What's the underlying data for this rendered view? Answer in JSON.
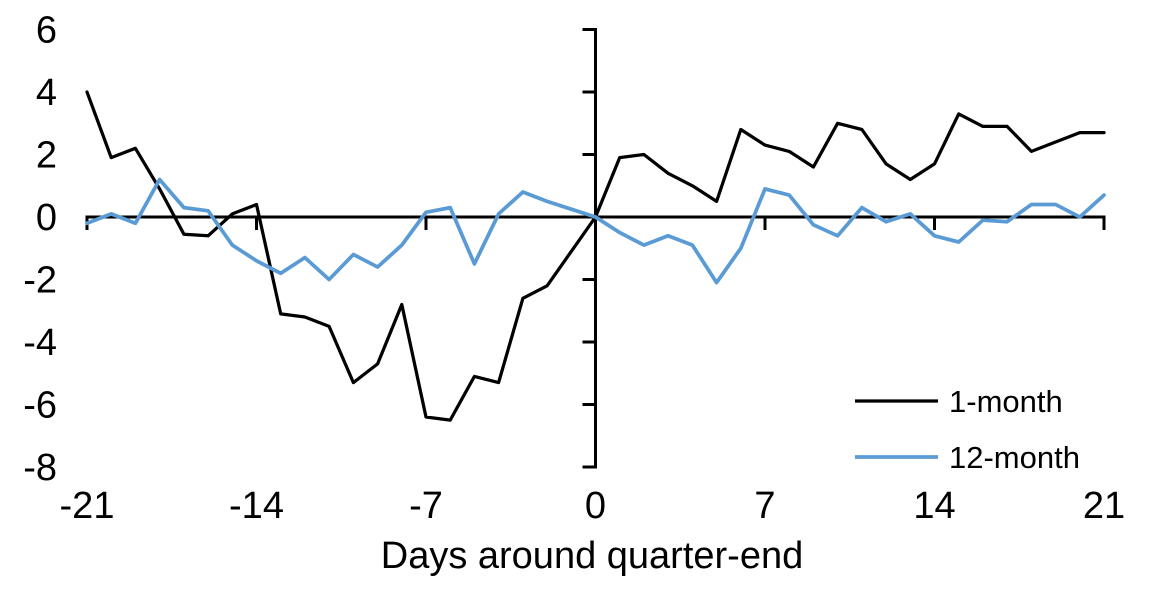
{
  "chart_data": {
    "type": "line",
    "title": "",
    "xlabel": "Days around quarter-end",
    "ylabel": "",
    "x_range": [
      -21,
      21
    ],
    "y_range": [
      -8,
      6
    ],
    "x_ticks": [
      -21,
      -14,
      -7,
      0,
      7,
      14,
      21
    ],
    "y_ticks": [
      6,
      4,
      2,
      0,
      -2,
      -4,
      -6,
      -8
    ],
    "grid": false,
    "legend_position": "inside-lower-right",
    "axis_color": "#000000",
    "x": [
      -21,
      -20,
      -19,
      -18,
      -17,
      -16,
      -15,
      -14,
      -13,
      -12,
      -11,
      -10,
      -9,
      -8,
      -7,
      -6,
      -5,
      -4,
      -3,
      -2,
      -1,
      0,
      1,
      2,
      3,
      4,
      5,
      6,
      7,
      8,
      9,
      10,
      11,
      12,
      13,
      14,
      15,
      16,
      17,
      18,
      19,
      20,
      21
    ],
    "series": [
      {
        "name": "1-month",
        "color": "#000000",
        "values": [
          4.0,
          1.9,
          2.2,
          0.9,
          -0.55,
          -0.6,
          0.1,
          0.4,
          -3.1,
          -3.2,
          -3.5,
          -5.3,
          -4.7,
          -2.8,
          -6.4,
          -6.5,
          -5.1,
          -5.3,
          -2.6,
          -2.2,
          -1.1,
          0.0,
          1.9,
          2.0,
          1.4,
          1.0,
          0.5,
          2.8,
          2.3,
          2.1,
          1.6,
          3.0,
          2.8,
          1.7,
          1.2,
          1.7,
          3.3,
          2.9,
          2.9,
          2.1,
          2.4,
          2.7,
          2.7
        ]
      },
      {
        "name": "12-month",
        "color": "#5B9BD5",
        "values": [
          -0.2,
          0.1,
          -0.2,
          1.2,
          0.3,
          0.2,
          -0.9,
          -1.4,
          -1.8,
          -1.3,
          -2.0,
          -1.2,
          -1.6,
          -0.9,
          0.15,
          0.3,
          -1.5,
          0.1,
          0.8,
          0.5,
          0.25,
          0.0,
          -0.5,
          -0.9,
          -0.6,
          -0.9,
          -2.1,
          -1.0,
          0.9,
          0.7,
          -0.25,
          -0.6,
          0.3,
          -0.15,
          0.1,
          -0.6,
          -0.8,
          -0.1,
          -0.15,
          0.4,
          0.4,
          0.0,
          0.7
        ]
      }
    ]
  }
}
